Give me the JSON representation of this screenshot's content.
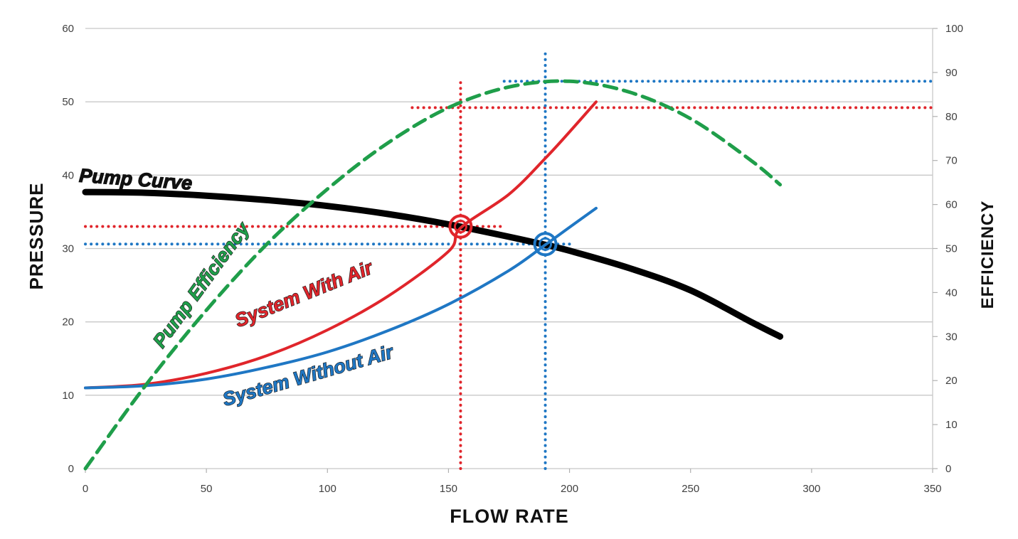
{
  "chart_data": {
    "type": "line",
    "xlabel": "FLOW RATE",
    "ylabel": "PRESSURE",
    "y2label": "EFFICIENCY",
    "xlim": [
      0,
      350
    ],
    "ylim": [
      0,
      60
    ],
    "y2lim": [
      0,
      100
    ],
    "x_ticks": [
      0,
      50,
      100,
      150,
      200,
      250,
      300,
      350
    ],
    "y_ticks": [
      0,
      10,
      20,
      30,
      40,
      50,
      60
    ],
    "y2_ticks": [
      0,
      10,
      20,
      30,
      40,
      50,
      60,
      70,
      80,
      90,
      100
    ],
    "grid": "horizontal",
    "legend": "none",
    "series": [
      {
        "name": "Pump Curve",
        "axis": "left",
        "style": "solid",
        "color": "#000000",
        "x": [
          0,
          25,
          50,
          75,
          100,
          125,
          150,
          175,
          190,
          200,
          225,
          250,
          275,
          287
        ],
        "y": [
          37.7,
          37.6,
          37.2,
          36.6,
          35.8,
          34.7,
          33.3,
          31.6,
          30.5,
          29.7,
          27.3,
          24.3,
          20.0,
          18.0
        ]
      },
      {
        "name": "System With Air",
        "axis": "left",
        "style": "solid",
        "color": "#e0252b",
        "x": [
          0,
          25,
          50,
          75,
          100,
          125,
          150,
          155,
          175,
          190,
          200,
          211
        ],
        "y": [
          11.0,
          11.5,
          13.0,
          15.4,
          18.9,
          23.5,
          29.6,
          32.8,
          37.4,
          42.3,
          45.9,
          50.0
        ]
      },
      {
        "name": "System Without Air",
        "axis": "left",
        "style": "solid",
        "color": "#1f77c4",
        "x": [
          0,
          25,
          50,
          75,
          100,
          125,
          150,
          175,
          190,
          200,
          211
        ],
        "y": [
          11.0,
          11.3,
          12.2,
          13.8,
          15.9,
          18.8,
          22.4,
          27.0,
          30.5,
          32.9,
          35.5
        ]
      },
      {
        "name": "Pump Efficiency",
        "axis": "right",
        "style": "dashed",
        "color": "#1f9e4a",
        "x": [
          0,
          25,
          50,
          75,
          100,
          125,
          150,
          175,
          200,
          225,
          250,
          275,
          287
        ],
        "y": [
          0,
          19.0,
          36.0,
          51.0,
          63.5,
          74.0,
          82.0,
          86.7,
          88.0,
          85.5,
          79.5,
          70.0,
          64.5
        ]
      }
    ],
    "reference_lines": [
      {
        "color": "#e0252b",
        "axis": "left",
        "orientation": "horizontal",
        "value": 33,
        "from": 0,
        "to": 172
      },
      {
        "color": "#1f77c4",
        "axis": "left",
        "orientation": "horizontal",
        "value": 30.6,
        "from": 0,
        "to": 200
      },
      {
        "color": "#e0252b",
        "axis": "right",
        "orientation": "horizontal",
        "value": 82,
        "from": 135,
        "to": 350
      },
      {
        "color": "#1f77c4",
        "axis": "right",
        "orientation": "horizontal",
        "value": 88,
        "from": 173,
        "to": 350
      },
      {
        "color": "#e0252b",
        "axis": "left",
        "orientation": "vertical",
        "value": 155,
        "from": 0,
        "to": 52.8
      },
      {
        "color": "#1f77c4",
        "axis": "left",
        "orientation": "vertical",
        "value": 190,
        "from": 0,
        "to": 57.2
      }
    ],
    "operating_points": [
      {
        "series": "System With Air",
        "x": 155,
        "y": 33,
        "color": "#e0252b"
      },
      {
        "series": "System Without Air",
        "x": 190,
        "y": 30.6,
        "color": "#1f77c4"
      }
    ],
    "annotations": [
      {
        "text": "Pump Curve",
        "series": "Pump Curve",
        "color": "#111111"
      },
      {
        "text": "System With Air",
        "series": "System With Air",
        "color": "#e0252b"
      },
      {
        "text": "System Without Air",
        "series": "System Without Air",
        "color": "#1f77c4"
      },
      {
        "text": "Pump Efficiency",
        "series": "Pump Efficiency",
        "color": "#1f9e4a"
      }
    ]
  }
}
